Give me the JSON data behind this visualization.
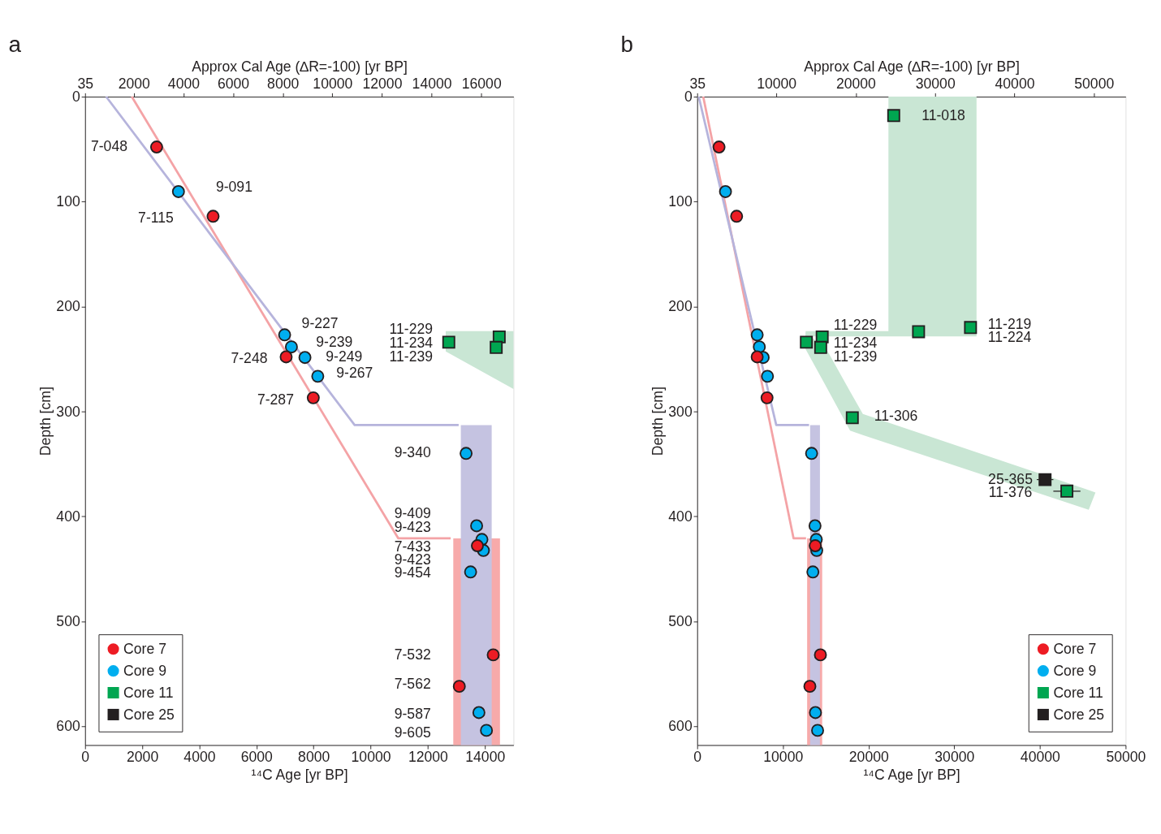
{
  "chart_data": [
    {
      "type": "scatter",
      "title": "a",
      "xlabel": "¹⁴C Age [yr BP]",
      "ylabel": "Depth [cm]",
      "x2label": "Approx Cal Age (∆R=-100) [yr BP]",
      "xlim": [
        0,
        15000
      ],
      "xticks": [
        0,
        2000,
        4000,
        6000,
        8000,
        10000,
        12000,
        14000
      ],
      "x2lim": [
        35,
        17300
      ],
      "x2ticks": [
        35,
        2000,
        4000,
        6000,
        8000,
        10000,
        12000,
        14000,
        16000
      ],
      "ylim": [
        618,
        0
      ],
      "yticks": [
        0,
        100,
        200,
        300,
        400,
        500,
        600
      ],
      "grid": false,
      "legend": "bottom left",
      "series": [
        {
          "type": "area",
          "color": "#f7aaaa",
          "x": [
            12892,
            14527
          ],
          "values": [
            null,
            null
          ],
          "lower": [
            421,
            421
          ],
          "upper": [
            618,
            618
          ]
        },
        {
          "type": "area",
          "color": "#c5c3e1",
          "x": [
            13156,
            14237
          ],
          "values": [
            null,
            null
          ],
          "lower": [
            313,
            313
          ],
          "upper": [
            618,
            618
          ]
        },
        {
          "type": "area",
          "color": "#c9e6d4",
          "x": [
            12628,
            15000
          ],
          "values": [
            null,
            null
          ],
          "lower": [
            223.4,
            223.4
          ],
          "upper": [
            242.8,
            278.7
          ]
        },
        {
          "type": "line",
          "color": "#f4a3a6",
          "x": [
            1635,
            10968,
            12800
          ],
          "values": [
            0,
            421,
            421
          ]
        },
        {
          "type": "line",
          "color": "#b6b4dc",
          "x": [
            738,
            9438,
            13080
          ],
          "values": [
            0,
            313,
            313
          ]
        },
        {
          "name": "Core 7",
          "color": "#ed1c24",
          "marker": "circle",
          "x": [
            2505,
            4482,
            7040,
            7990,
            13736,
            14290,
            13103
          ],
          "values": [
            48,
            114,
            248,
            287,
            428,
            532,
            562
          ]
        },
        {
          "name": "Core 9",
          "color": "#00aeef",
          "marker": "circle",
          "x": [
            3269,
            6987,
            7224,
            7698,
            8147,
            13340,
            13709,
            13894,
            13947,
            13498,
            13789,
            14053
          ],
          "values": [
            90.5,
            227,
            238.5,
            248.6,
            266.5,
            340,
            409,
            422,
            432.5,
            453,
            587,
            604
          ]
        },
        {
          "name": "Core 11",
          "color": "#00a651",
          "marker": "square",
          "x": [
            14500,
            12734,
            14395
          ],
          "values": [
            229,
            234,
            239
          ]
        },
        {
          "name": "Core 25",
          "color": "#231f20",
          "marker": "square"
        }
      ],
      "annotations": [
        "7-048",
        "9-091",
        "7-115",
        "9-227",
        "9-239",
        "7-248",
        "9-249",
        "9-267",
        "7-287",
        "11-229",
        "11-234",
        "11-239",
        "9-340",
        "9-409",
        "9-423",
        "7-433",
        "9-423",
        "9-454",
        "7-532",
        "7-562",
        "9-587",
        "9-605"
      ]
    },
    {
      "type": "scatter",
      "title": "b",
      "xlabel": "¹⁴C Age [yr BP]",
      "ylabel": "Depth [cm]",
      "x2label": "Approx Cal Age (∆R=-100) [yr BP]",
      "xlim": [
        0,
        50000
      ],
      "xticks": [
        0,
        10000,
        20000,
        30000,
        40000,
        50000
      ],
      "x2lim": [
        35,
        54000
      ],
      "x2ticks": [
        35,
        10000,
        20000,
        30000,
        40000,
        50000
      ],
      "ylim": [
        618,
        0
      ],
      "yticks": [
        0,
        100,
        200,
        300,
        400,
        500,
        600
      ],
      "grid": false,
      "legend": "bottom right",
      "series": [
        {
          "type": "area",
          "color": "#c9e6d4",
          "x": [
            12654,
            22320,
            22320,
            32601
          ],
          "values": [
            null,
            null,
            null,
            null
          ],
          "lower": [
            223.4,
            223.4,
            0,
            0
          ],
          "upper": [
            228.4,
            228.4,
            228.4,
            228.4
          ]
        },
        {
          "type": "area",
          "color": "#c9e6d4",
          "x": [
            12654,
            15114,
            17838,
            19332,
            45694,
            46485
          ],
          "values": [
            null,
            null,
            null,
            null,
            null,
            null
          ],
          "lower": [
            224.9,
            241,
            280.9,
            302.4,
            375,
            377.2
          ],
          "upper": [
            240.7,
            277.3,
            318.2,
            322.6,
            393.7,
            377.2
          ]
        },
        {
          "type": "area",
          "color": "#f7aaaa",
          "x": [
            12830,
            14587
          ],
          "values": [
            null,
            null
          ],
          "lower": [
            421,
            421
          ],
          "upper": [
            618,
            618
          ]
        },
        {
          "type": "area",
          "color": "#c5c3e1",
          "x": [
            13180,
            14323
          ],
          "values": [
            null,
            null
          ],
          "lower": [
            313,
            313
          ],
          "upper": [
            618,
            618
          ]
        },
        {
          "type": "line",
          "color": "#f4a3a6",
          "x": [
            703,
            11248,
            12700
          ],
          "values": [
            0,
            421,
            421
          ]
        },
        {
          "type": "line",
          "color": "#b6b4dc",
          "x": [
            176,
            9227,
            13050
          ],
          "values": [
            0,
            313,
            313
          ]
        },
        {
          "name": "Core 7",
          "color": "#ed1c24",
          "marker": "circle",
          "x": [
            2548,
            4600,
            7000,
            8150,
            13780,
            14380,
            13150
          ],
          "values": [
            48,
            114,
            248,
            287,
            428,
            532,
            562
          ]
        },
        {
          "name": "Core 9",
          "color": "#00aeef",
          "marker": "circle",
          "x": [
            3300,
            7000,
            7250,
            7700,
            8200,
            13350,
            13750,
            13900,
            13950,
            13500,
            13800,
            14050
          ],
          "values": [
            90.5,
            227,
            238.5,
            248.6,
            266.5,
            340,
            409,
            422,
            432.5,
            453,
            587,
            604
          ]
        },
        {
          "name": "Core 11",
          "color": "#00a651",
          "marker": "square",
          "x": [
            22935,
            14587,
            12742,
            14411,
            31898,
            25835,
            18102,
            43146
          ],
          "values": [
            18,
            229,
            234,
            239,
            220,
            224,
            306,
            376
          ],
          "xerrors": [
            null,
            null,
            null,
            null,
            null,
            null,
            null,
            1580
          ]
        },
        {
          "name": "Core 25",
          "color": "#231f20",
          "marker": "square",
          "x": [
            40598
          ],
          "values": [
            365
          ],
          "xerrors": [
            970
          ]
        }
      ],
      "annotations": [
        "11-018",
        "11-229",
        "11-234",
        "11-239",
        "11-219",
        "11-224",
        "11-306",
        "25-365",
        "11-376"
      ]
    }
  ]
}
